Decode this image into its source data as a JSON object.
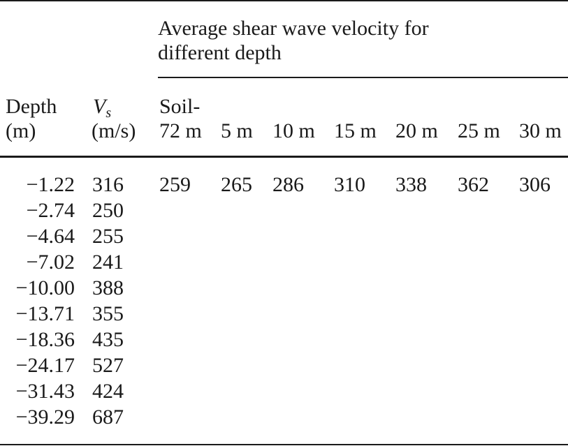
{
  "table": {
    "spanner_header_line1": "Average shear wave velocity for",
    "spanner_header_line2": "different depth",
    "col_depth_line1": "Depth",
    "col_depth_line2": "(m)",
    "col_vs_symbol": "V",
    "col_vs_subscript": "s",
    "col_vs_unit": "(m/s)",
    "col_soil_line1": "Soil-",
    "col_soil_line2": "72 m",
    "depth_columns": [
      "5 m",
      "10 m",
      "15 m",
      "20 m",
      "25 m",
      "30 m"
    ],
    "rows": [
      {
        "depth": "−1.22",
        "vs": "316"
      },
      {
        "depth": "−2.74",
        "vs": "250"
      },
      {
        "depth": "−4.64",
        "vs": "255"
      },
      {
        "depth": "−7.02",
        "vs": "241"
      },
      {
        "depth": "−10.00",
        "vs": "388"
      },
      {
        "depth": "−13.71",
        "vs": "355"
      },
      {
        "depth": "−18.36",
        "vs": "435"
      },
      {
        "depth": "−24.17",
        "vs": "527"
      },
      {
        "depth": "−31.43",
        "vs": "424"
      },
      {
        "depth": "−39.29",
        "vs": "687"
      }
    ],
    "average_values": [
      "259",
      "265",
      "286",
      "310",
      "338",
      "362",
      "306"
    ]
  }
}
